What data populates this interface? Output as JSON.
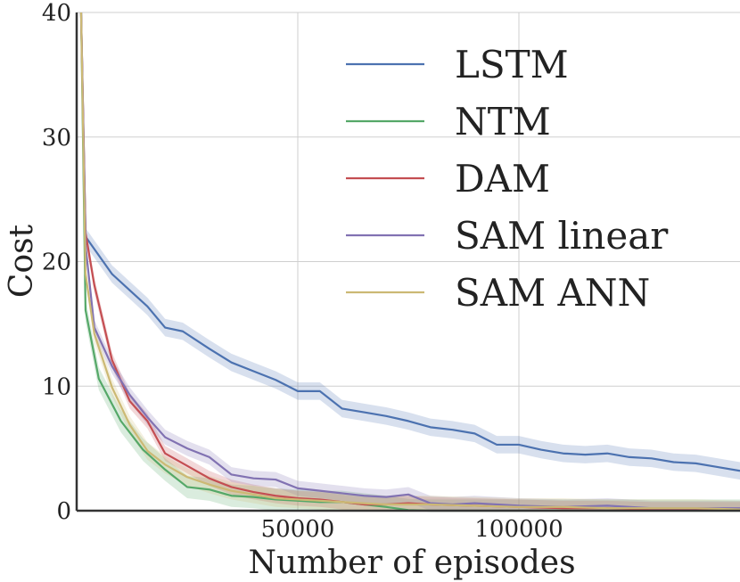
{
  "chart_data": {
    "type": "line",
    "title": "",
    "xlabel": "Number of episodes",
    "ylabel": "Cost",
    "xlim": [
      0,
      150000
    ],
    "ylim": [
      0,
      40
    ],
    "xticks": [
      50000,
      100000
    ],
    "xtick_labels": [
      "50000",
      "100000"
    ],
    "yticks": [
      0,
      10,
      20,
      30,
      40
    ],
    "ytick_labels": [
      "0",
      "10",
      "20",
      "30",
      "40"
    ],
    "grid": true,
    "legend_position": "top-right",
    "series": [
      {
        "name": "LSTM",
        "color": "#4c72b0",
        "band": 0.7,
        "x": [
          1000,
          2000,
          4000,
          8000,
          12000,
          16000,
          20000,
          24000,
          30000,
          35000,
          40000,
          45000,
          50000,
          55000,
          60000,
          65000,
          70000,
          75000,
          80000,
          85000,
          90000,
          95000,
          100000,
          105000,
          110000,
          115000,
          120000,
          125000,
          130000,
          135000,
          140000,
          145000,
          150000
        ],
        "y": [
          40,
          22,
          21,
          19,
          17.7,
          16.4,
          14.7,
          14.4,
          13,
          11.9,
          11.2,
          10.5,
          9.6,
          9.6,
          8.2,
          7.9,
          7.6,
          7.2,
          6.7,
          6.5,
          6.2,
          5.3,
          5.3,
          4.9,
          4.6,
          4.5,
          4.6,
          4.3,
          4.2,
          3.9,
          3.8,
          3.5,
          3.2
        ]
      },
      {
        "name": "NTM",
        "color": "#55a868",
        "band": 0.9,
        "x": [
          1000,
          2000,
          5000,
          10000,
          15000,
          20000,
          25000,
          30000,
          35000,
          40000,
          45000,
          50000,
          55000,
          60000,
          65000,
          70000,
          75000,
          80000,
          90000,
          100000,
          110000,
          120000,
          130000,
          140000,
          150000
        ],
        "y": [
          40,
          16.1,
          10.6,
          7.2,
          4.9,
          3.3,
          1.9,
          1.7,
          1.2,
          1.1,
          0.9,
          0.8,
          0.7,
          0.7,
          0.5,
          0.3,
          0.05,
          0.0,
          0.0,
          0.0,
          0.0,
          0.0,
          0.0,
          0.0,
          0.0
        ]
      },
      {
        "name": "DAM",
        "color": "#c44e52",
        "band": 0.6,
        "x": [
          1000,
          2000,
          4000,
          8000,
          12000,
          16000,
          20000,
          25000,
          30000,
          35000,
          40000,
          45000,
          50000,
          55000,
          60000,
          65000,
          70000,
          75000,
          80000,
          90000,
          100000,
          110000,
          120000,
          130000,
          140000,
          150000
        ],
        "y": [
          40,
          22.3,
          18.1,
          12.1,
          8.8,
          7.2,
          4.6,
          3.6,
          2.6,
          1.9,
          1.5,
          1.2,
          1.0,
          0.9,
          0.7,
          0.5,
          0.5,
          0.6,
          0.5,
          0.4,
          0.3,
          0.2,
          0.2,
          0.1,
          0.1,
          0.1
        ]
      },
      {
        "name": "SAM linear",
        "color": "#8172b2",
        "band": 0.6,
        "x": [
          1000,
          2000,
          4000,
          8000,
          12000,
          16000,
          20000,
          25000,
          30000,
          35000,
          40000,
          45000,
          50000,
          55000,
          60000,
          65000,
          70000,
          75000,
          80000,
          85000,
          90000,
          95000,
          100000,
          110000,
          120000,
          130000,
          140000,
          150000
        ],
        "y": [
          40,
          21.3,
          14.7,
          11.6,
          9.3,
          7.5,
          5.9,
          5.0,
          4.3,
          2.9,
          2.6,
          2.5,
          1.8,
          1.6,
          1.4,
          1.2,
          1.1,
          1.3,
          0.6,
          0.5,
          0.6,
          0.5,
          0.4,
          0.3,
          0.4,
          0.2,
          0.2,
          0.2
        ]
      },
      {
        "name": "SAM ANN",
        "color": "#ccb974",
        "band": 0.7,
        "x": [
          1000,
          2000,
          4000,
          8000,
          12000,
          16000,
          20000,
          25000,
          30000,
          35000,
          40000,
          45000,
          50000,
          55000,
          60000,
          65000,
          70000,
          80000,
          90000,
          100000,
          110000,
          120000,
          130000,
          140000,
          150000
        ],
        "y": [
          40,
          19.0,
          14.2,
          9.9,
          6.9,
          4.8,
          3.7,
          2.7,
          2.1,
          1.6,
          1.3,
          1.0,
          0.9,
          0.8,
          0.7,
          0.6,
          0.5,
          0.5,
          0.4,
          0.3,
          0.3,
          0.2,
          0.2,
          0.2,
          0.1
        ]
      }
    ]
  }
}
